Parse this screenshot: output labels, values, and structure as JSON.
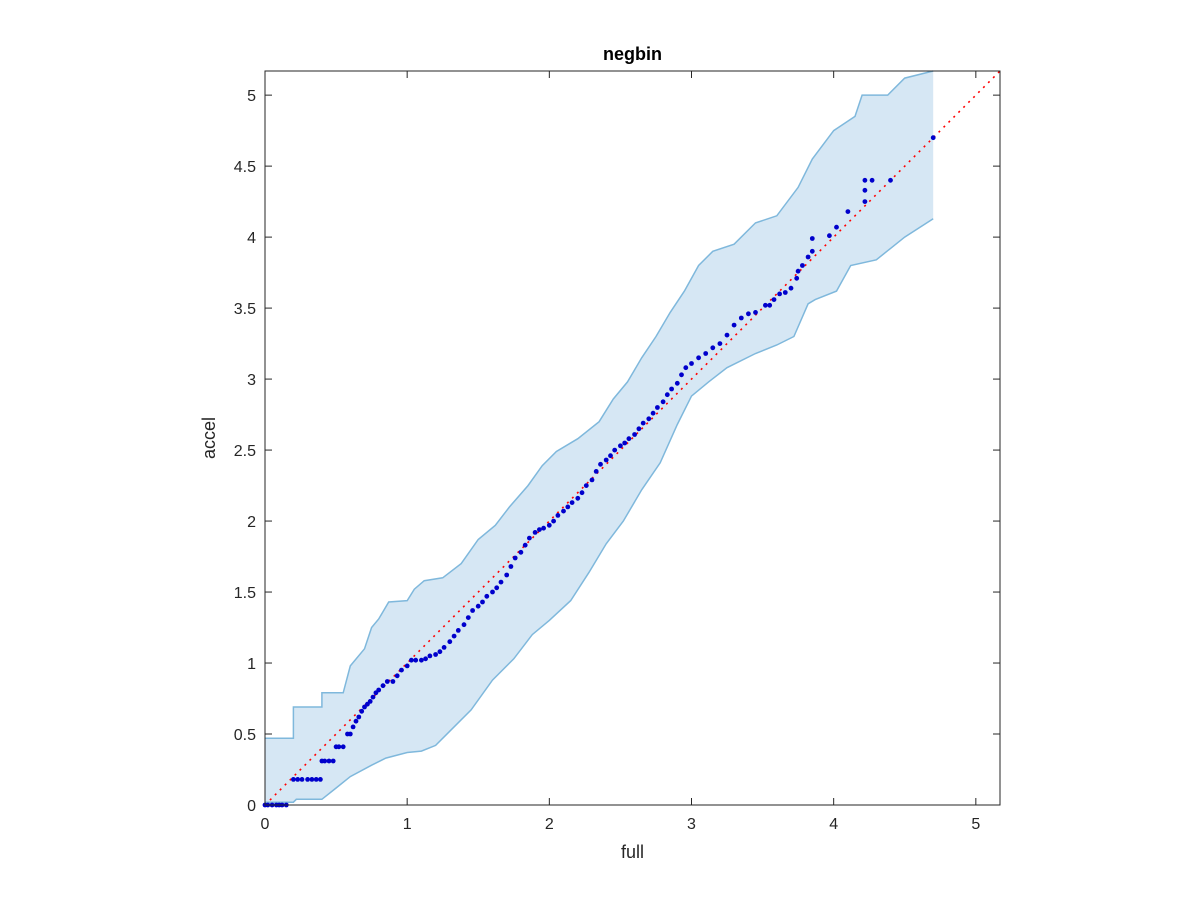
{
  "chart_data": {
    "type": "scatter",
    "title": "negbin",
    "xlabel": "full",
    "ylabel": "accel",
    "xlim": [
      0,
      5.17
    ],
    "ylim": [
      0,
      5.17
    ],
    "xticks": [
      "0",
      "1",
      "2",
      "3",
      "4",
      "5"
    ],
    "yticks": [
      "0",
      "0.5",
      "1",
      "1.5",
      "2",
      "2.5",
      "3",
      "3.5",
      "4",
      "4.5",
      "5"
    ],
    "grid": false,
    "box": true,
    "colors": {
      "points": "#0000cc",
      "reference_line": "#ff0000",
      "band_fill": "#d6e7f4",
      "band_edge": "#7fb8dc",
      "axes": "#262626"
    },
    "reference_line": {
      "style": "dotted",
      "from": [
        0,
        0
      ],
      "to": [
        5.17,
        5.17
      ]
    },
    "confidence_band": {
      "upper": [
        [
          0,
          0.47
        ],
        [
          0.2,
          0.47
        ],
        [
          0.2,
          0.69
        ],
        [
          0.4,
          0.69
        ],
        [
          0.4,
          0.79
        ],
        [
          0.55,
          0.79
        ],
        [
          0.6,
          0.98
        ],
        [
          0.7,
          1.1
        ],
        [
          0.75,
          1.25
        ],
        [
          0.8,
          1.31
        ],
        [
          0.87,
          1.43
        ],
        [
          1.0,
          1.44
        ],
        [
          1.05,
          1.52
        ],
        [
          1.12,
          1.58
        ],
        [
          1.25,
          1.6
        ],
        [
          1.38,
          1.7
        ],
        [
          1.5,
          1.87
        ],
        [
          1.62,
          1.97
        ],
        [
          1.72,
          2.1
        ],
        [
          1.85,
          2.25
        ],
        [
          1.95,
          2.39
        ],
        [
          2.05,
          2.49
        ],
        [
          2.2,
          2.58
        ],
        [
          2.35,
          2.7
        ],
        [
          2.45,
          2.86
        ],
        [
          2.55,
          2.98
        ],
        [
          2.65,
          3.15
        ],
        [
          2.75,
          3.3
        ],
        [
          2.85,
          3.47
        ],
        [
          2.95,
          3.62
        ],
        [
          3.05,
          3.8
        ],
        [
          3.15,
          3.9
        ],
        [
          3.3,
          3.95
        ],
        [
          3.45,
          4.1
        ],
        [
          3.6,
          4.15
        ],
        [
          3.75,
          4.35
        ],
        [
          3.85,
          4.55
        ],
        [
          4.0,
          4.75
        ],
        [
          4.15,
          4.85
        ],
        [
          4.2,
          5.0
        ],
        [
          4.38,
          5.0
        ],
        [
          4.5,
          5.12
        ],
        [
          4.7,
          5.17
        ]
      ],
      "lower": [
        [
          0,
          0.02
        ],
        [
          0.2,
          0.02
        ],
        [
          0.22,
          0.04
        ],
        [
          0.4,
          0.04
        ],
        [
          0.5,
          0.12
        ],
        [
          0.6,
          0.2
        ],
        [
          0.75,
          0.28
        ],
        [
          0.85,
          0.33
        ],
        [
          1.0,
          0.37
        ],
        [
          1.1,
          0.38
        ],
        [
          1.2,
          0.42
        ],
        [
          1.3,
          0.52
        ],
        [
          1.45,
          0.67
        ],
        [
          1.6,
          0.88
        ],
        [
          1.75,
          1.03
        ],
        [
          1.88,
          1.2
        ],
        [
          2.0,
          1.3
        ],
        [
          2.15,
          1.44
        ],
        [
          2.28,
          1.64
        ],
        [
          2.4,
          1.84
        ],
        [
          2.52,
          2.0
        ],
        [
          2.65,
          2.22
        ],
        [
          2.78,
          2.41
        ],
        [
          2.9,
          2.68
        ],
        [
          3.0,
          2.88
        ],
        [
          3.12,
          2.98
        ],
        [
          3.25,
          3.08
        ],
        [
          3.45,
          3.18
        ],
        [
          3.6,
          3.24
        ],
        [
          3.72,
          3.3
        ],
        [
          3.82,
          3.53
        ],
        [
          3.87,
          3.56
        ],
        [
          4.02,
          3.62
        ],
        [
          4.12,
          3.8
        ],
        [
          4.3,
          3.84
        ],
        [
          4.5,
          4.0
        ],
        [
          4.7,
          4.13
        ]
      ]
    },
    "series": [
      {
        "x": [
          0.0,
          0.02,
          0.05,
          0.08,
          0.1,
          0.12,
          0.15,
          0.2,
          0.23,
          0.26,
          0.3,
          0.33,
          0.36,
          0.39,
          0.4,
          0.42,
          0.45,
          0.48,
          0.5,
          0.52,
          0.55,
          0.58,
          0.6,
          0.62,
          0.64,
          0.66,
          0.68,
          0.7,
          0.72,
          0.74,
          0.76,
          0.78,
          0.8,
          0.83,
          0.86,
          0.9,
          0.93,
          0.96,
          1.0,
          1.03,
          1.06,
          1.1,
          1.13,
          1.16,
          1.2,
          1.23,
          1.26,
          1.3,
          1.33,
          1.36,
          1.4,
          1.43,
          1.46,
          1.5,
          1.53,
          1.56,
          1.6,
          1.63,
          1.66,
          1.7,
          1.73,
          1.76,
          1.8,
          1.83,
          1.86,
          1.9,
          1.93,
          1.96,
          2.0,
          2.03,
          2.06,
          2.1,
          2.13,
          2.16,
          2.2,
          2.23,
          2.26,
          2.3,
          2.33,
          2.36,
          2.4,
          2.43,
          2.46,
          2.5,
          2.53,
          2.56,
          2.6,
          2.63,
          2.66,
          2.7,
          2.73,
          2.76,
          2.8,
          2.83,
          2.86,
          2.9,
          2.93,
          2.96,
          3.0,
          3.05,
          3.1,
          3.15,
          3.2,
          3.25,
          3.3,
          3.35,
          3.4,
          3.45,
          3.52,
          3.55,
          3.58,
          3.62,
          3.66,
          3.7,
          3.74,
          3.75,
          3.78,
          3.82,
          3.85,
          3.85,
          3.97,
          4.02,
          4.1,
          4.22,
          4.22,
          4.22,
          4.27,
          4.4,
          4.7
        ],
        "y": [
          0.0,
          0.0,
          0.0,
          0.0,
          0.0,
          0.0,
          0.0,
          0.18,
          0.18,
          0.18,
          0.18,
          0.18,
          0.18,
          0.18,
          0.31,
          0.31,
          0.31,
          0.31,
          0.41,
          0.41,
          0.41,
          0.5,
          0.5,
          0.55,
          0.59,
          0.62,
          0.66,
          0.69,
          0.71,
          0.73,
          0.76,
          0.79,
          0.81,
          0.84,
          0.87,
          0.87,
          0.91,
          0.95,
          0.98,
          1.02,
          1.02,
          1.02,
          1.03,
          1.05,
          1.06,
          1.08,
          1.11,
          1.15,
          1.19,
          1.23,
          1.27,
          1.32,
          1.37,
          1.4,
          1.43,
          1.47,
          1.5,
          1.53,
          1.57,
          1.62,
          1.68,
          1.74,
          1.78,
          1.83,
          1.88,
          1.92,
          1.94,
          1.95,
          1.97,
          2.0,
          2.04,
          2.07,
          2.1,
          2.13,
          2.16,
          2.2,
          2.25,
          2.29,
          2.35,
          2.4,
          2.43,
          2.46,
          2.5,
          2.53,
          2.55,
          2.58,
          2.61,
          2.65,
          2.69,
          2.72,
          2.76,
          2.8,
          2.84,
          2.89,
          2.93,
          2.97,
          3.03,
          3.08,
          3.11,
          3.15,
          3.18,
          3.22,
          3.25,
          3.31,
          3.38,
          3.43,
          3.46,
          3.47,
          3.52,
          3.52,
          3.56,
          3.6,
          3.61,
          3.64,
          3.71,
          3.76,
          3.8,
          3.86,
          3.9,
          3.99,
          4.01,
          4.07,
          4.18,
          4.25,
          4.33,
          4.4,
          4.4,
          4.4,
          4.7
        ]
      }
    ]
  }
}
